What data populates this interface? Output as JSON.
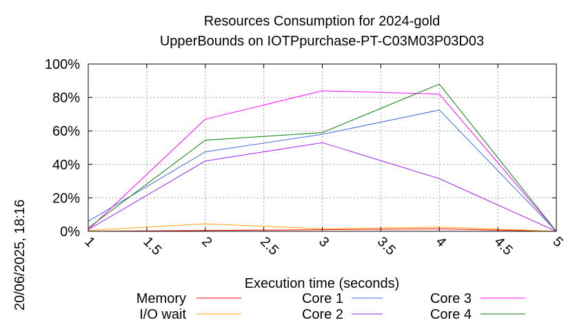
{
  "timestamp": "20/06/2025, 18:16",
  "chart_data": {
    "type": "line",
    "title": [
      "Resources Consumption for 2024-gold",
      "UpperBounds on IOTPpurchase-PT-C03M03P03D03"
    ],
    "xlabel": "Execution time (seconds)",
    "ylabel": "",
    "xlim": [
      1,
      5
    ],
    "ylim": [
      0,
      100
    ],
    "x_ticks": [
      "1",
      "1.5",
      "2",
      "2.5",
      "3",
      "3.5",
      "4",
      "4.5",
      "5"
    ],
    "y_ticks": [
      "0%",
      "20%",
      "40%",
      "60%",
      "80%",
      "100%"
    ],
    "grid": true,
    "legend_position": "bottom",
    "x": [
      1,
      2,
      3,
      4,
      5
    ],
    "series": [
      {
        "name": "Memory",
        "color": "#ff0000",
        "values": [
          0,
          0.5,
          1,
          1.5,
          0
        ]
      },
      {
        "name": "I/O wait",
        "color": "#ffa500",
        "values": [
          0.5,
          4.5,
          1.5,
          2.5,
          0
        ]
      },
      {
        "name": "Core 1",
        "color": "#4169e1",
        "values": [
          6,
          47.5,
          58,
          72.5,
          0
        ]
      },
      {
        "name": "Core 2",
        "color": "#a020f0",
        "values": [
          1,
          42,
          53,
          31.5,
          0
        ]
      },
      {
        "name": "Core 3",
        "color": "#ff00ff",
        "values": [
          1,
          67,
          84,
          82,
          0
        ]
      },
      {
        "name": "Core 4",
        "color": "#008000",
        "values": [
          2,
          54.5,
          59,
          88,
          0
        ]
      }
    ]
  }
}
